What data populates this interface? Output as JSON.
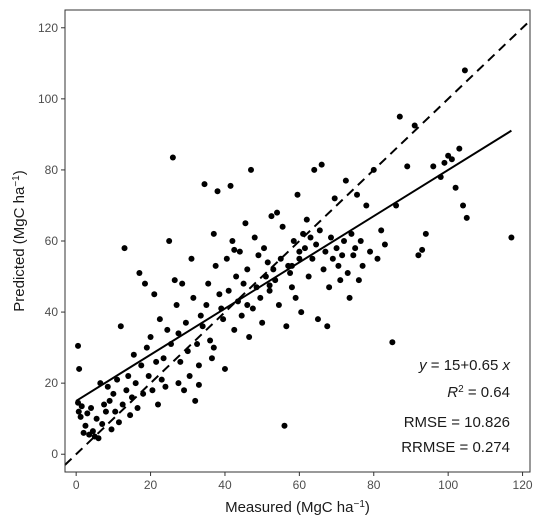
{
  "chart_data": {
    "type": "scatter",
    "xlabel": {
      "main": "Measured (MgC ha",
      "sup": "−1",
      "close": ")"
    },
    "ylabel": {
      "main": "Predicted (MgC ha",
      "sup": "−1",
      "close": ")"
    },
    "xlim": [
      -3,
      122
    ],
    "ylim": [
      -5,
      125
    ],
    "xticks": [
      0,
      20,
      40,
      60,
      80,
      100,
      120
    ],
    "yticks": [
      0,
      20,
      40,
      60,
      80,
      100,
      120
    ],
    "grid": false,
    "reference_line": {
      "type": "1:1",
      "style": "dashed"
    },
    "regression": {
      "intercept": 15,
      "slope": 0.65,
      "x_range": [
        0,
        117
      ]
    },
    "annotations": {
      "equation": {
        "y": "y",
        "eq": " = 15+0.65 ",
        "x": "x"
      },
      "r2": {
        "r": "R",
        "sup": "2",
        "rest": " = 0.64"
      },
      "rmse": "RMSE = 10.826",
      "rrmse": "RRMSE = 0.274"
    },
    "points": [
      [
        0.5,
        30.5
      ],
      [
        0.8,
        24
      ],
      [
        0.5,
        14.5
      ],
      [
        0.7,
        12
      ],
      [
        1.2,
        10.5
      ],
      [
        1.5,
        13.5
      ],
      [
        2,
        6
      ],
      [
        2.5,
        8
      ],
      [
        3,
        11.5
      ],
      [
        3.5,
        5.5
      ],
      [
        4,
        13
      ],
      [
        4.5,
        6.5
      ],
      [
        5,
        5
      ],
      [
        5.5,
        10
      ],
      [
        6,
        4.5
      ],
      [
        6.5,
        20
      ],
      [
        7,
        8.5
      ],
      [
        7.5,
        14
      ],
      [
        8,
        12
      ],
      [
        8.5,
        19
      ],
      [
        9,
        15
      ],
      [
        9.5,
        7
      ],
      [
        10,
        17
      ],
      [
        10.5,
        12
      ],
      [
        11,
        21
      ],
      [
        11.5,
        9
      ],
      [
        12,
        36
      ],
      [
        12.5,
        14
      ],
      [
        13,
        58
      ],
      [
        13.5,
        18
      ],
      [
        14,
        22
      ],
      [
        14.5,
        11
      ],
      [
        15,
        16
      ],
      [
        15.5,
        28
      ],
      [
        16,
        20
      ],
      [
        16.5,
        13
      ],
      [
        17,
        51
      ],
      [
        17.5,
        25
      ],
      [
        18,
        17
      ],
      [
        18.5,
        48
      ],
      [
        19,
        30
      ],
      [
        19.5,
        22
      ],
      [
        20,
        33
      ],
      [
        20.5,
        18
      ],
      [
        21,
        45
      ],
      [
        21.5,
        26
      ],
      [
        22,
        14
      ],
      [
        22.5,
        38
      ],
      [
        23,
        21
      ],
      [
        23.5,
        27
      ],
      [
        24,
        19
      ],
      [
        24.5,
        35
      ],
      [
        25,
        60
      ],
      [
        25.5,
        31
      ],
      [
        26,
        83.5
      ],
      [
        26.5,
        49
      ],
      [
        27,
        42
      ],
      [
        27.5,
        34
      ],
      [
        28,
        26
      ],
      [
        28.5,
        48
      ],
      [
        29,
        18
      ],
      [
        29.5,
        37
      ],
      [
        30,
        29
      ],
      [
        30.5,
        22
      ],
      [
        31,
        55
      ],
      [
        31.5,
        44
      ],
      [
        32,
        15
      ],
      [
        32.5,
        31
      ],
      [
        33,
        25
      ],
      [
        33.5,
        39
      ],
      [
        34,
        36
      ],
      [
        34.5,
        76
      ],
      [
        35,
        42
      ],
      [
        35.5,
        48
      ],
      [
        36,
        32
      ],
      [
        36.5,
        27
      ],
      [
        37,
        62
      ],
      [
        37.5,
        53
      ],
      [
        38,
        74
      ],
      [
        38.5,
        45
      ],
      [
        39,
        41
      ],
      [
        39.5,
        38
      ],
      [
        40,
        24
      ],
      [
        40.5,
        55
      ],
      [
        41,
        46
      ],
      [
        41.5,
        75.5
      ],
      [
        42,
        60
      ],
      [
        42.5,
        35
      ],
      [
        43,
        50
      ],
      [
        43.5,
        43
      ],
      [
        44,
        57
      ],
      [
        44.5,
        39
      ],
      [
        45,
        48
      ],
      [
        45.5,
        65
      ],
      [
        46,
        52
      ],
      [
        46.5,
        33
      ],
      [
        47,
        80
      ],
      [
        47.5,
        41
      ],
      [
        48,
        61
      ],
      [
        48.5,
        47
      ],
      [
        49,
        56
      ],
      [
        49.5,
        44
      ],
      [
        50,
        37
      ],
      [
        50.5,
        58
      ],
      [
        51,
        50
      ],
      [
        51.5,
        54
      ],
      [
        52,
        46
      ],
      [
        52.5,
        67
      ],
      [
        53,
        52
      ],
      [
        53.5,
        49
      ],
      [
        54,
        68
      ],
      [
        54.5,
        42
      ],
      [
        55,
        55
      ],
      [
        55.5,
        64
      ],
      [
        56,
        8
      ],
      [
        56.5,
        36
      ],
      [
        57,
        53
      ],
      [
        57.5,
        51
      ],
      [
        58,
        47
      ],
      [
        58.5,
        60
      ],
      [
        59,
        44
      ],
      [
        59.5,
        73
      ],
      [
        60,
        55
      ],
      [
        60.5,
        40
      ],
      [
        61,
        62
      ],
      [
        61.5,
        58
      ],
      [
        62,
        66
      ],
      [
        62.5,
        50
      ],
      [
        63,
        61
      ],
      [
        63.5,
        55
      ],
      [
        64,
        80
      ],
      [
        64.5,
        59
      ],
      [
        65,
        38
      ],
      [
        65.5,
        63
      ],
      [
        66,
        81.5
      ],
      [
        66.5,
        52
      ],
      [
        67,
        57
      ],
      [
        67.5,
        36
      ],
      [
        68,
        47
      ],
      [
        68.5,
        61
      ],
      [
        69,
        55
      ],
      [
        69.5,
        72
      ],
      [
        70,
        58
      ],
      [
        70.5,
        53
      ],
      [
        71,
        49
      ],
      [
        71.5,
        56
      ],
      [
        72,
        60
      ],
      [
        72.5,
        77
      ],
      [
        73,
        51
      ],
      [
        73.5,
        44
      ],
      [
        74,
        62
      ],
      [
        74.5,
        56
      ],
      [
        75,
        58
      ],
      [
        75.5,
        73
      ],
      [
        76,
        49
      ],
      [
        76.5,
        60
      ],
      [
        77,
        53
      ],
      [
        78,
        70
      ],
      [
        79,
        57
      ],
      [
        80,
        80
      ],
      [
        81,
        55
      ],
      [
        82,
        63
      ],
      [
        83,
        59
      ],
      [
        85,
        31.5
      ],
      [
        86,
        70
      ],
      [
        87,
        95
      ],
      [
        89,
        81
      ],
      [
        91,
        92.5
      ],
      [
        92,
        56
      ],
      [
        93,
        57.5
      ],
      [
        94,
        62
      ],
      [
        96,
        81
      ],
      [
        98,
        78
      ],
      [
        99,
        82
      ],
      [
        100,
        84
      ],
      [
        101,
        83
      ],
      [
        102,
        75
      ],
      [
        103,
        86
      ],
      [
        104,
        70
      ],
      [
        104.5,
        108
      ],
      [
        105,
        66.5
      ],
      [
        117,
        61
      ],
      [
        27.5,
        20
      ],
      [
        33,
        19.5
      ],
      [
        37,
        30
      ],
      [
        42.5,
        57.5
      ],
      [
        46,
        42
      ],
      [
        52,
        47.5
      ],
      [
        58,
        53
      ],
      [
        60,
        57
      ]
    ]
  }
}
